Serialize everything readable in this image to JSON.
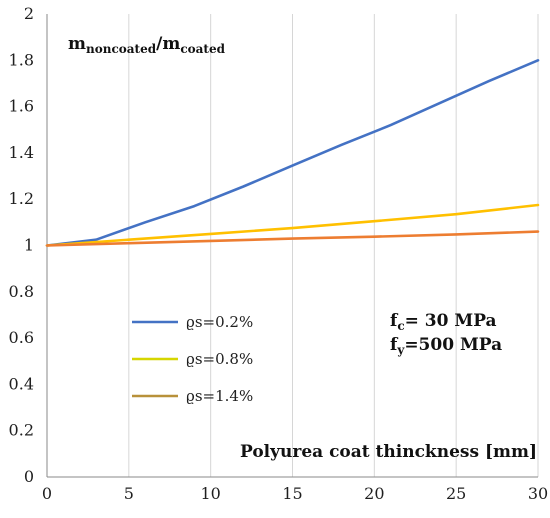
{
  "chart_data": {
    "type": "line",
    "ylabel": {
      "main": "m",
      "sub1": "noncoated",
      "slash": "/m",
      "sub2": "coated"
    },
    "xlabel": "Polyurea coat thinckness [mm]",
    "xlim": [
      0,
      30
    ],
    "ylim": [
      0,
      2
    ],
    "x_ticks": [
      "0",
      "5",
      "10",
      "15",
      "20",
      "25",
      "30"
    ],
    "y_ticks": [
      "0",
      "0.2",
      "0.4",
      "0.6",
      "0.8",
      "1",
      "1.2",
      "1.4",
      "1.6",
      "1.8",
      "2"
    ],
    "grid": "vertical",
    "legend_position": "lower-left",
    "series": [
      {
        "name": "ϱs=0.2%",
        "color": "#4472C4",
        "points": [
          [
            0,
            1.0
          ],
          [
            3,
            1.025
          ],
          [
            6,
            1.1
          ],
          [
            9,
            1.17
          ],
          [
            12,
            1.255
          ],
          [
            15,
            1.345
          ],
          [
            18,
            1.435
          ],
          [
            21,
            1.52
          ],
          [
            24,
            1.615
          ],
          [
            27,
            1.71
          ],
          [
            30,
            1.8
          ]
        ]
      },
      {
        "name": "ϱs=0.8%",
        "color": "#FFC000",
        "points": [
          [
            0,
            1.0
          ],
          [
            5,
            1.025
          ],
          [
            10,
            1.05
          ],
          [
            15,
            1.075
          ],
          [
            20,
            1.105
          ],
          [
            25,
            1.135
          ],
          [
            30,
            1.175
          ]
        ]
      },
      {
        "name": "ϱs=1.4%",
        "color": "#ED7D31",
        "points": [
          [
            0,
            1.0
          ],
          [
            5,
            1.01
          ],
          [
            10,
            1.02
          ],
          [
            15,
            1.03
          ],
          [
            20,
            1.038
          ],
          [
            25,
            1.048
          ],
          [
            30,
            1.06
          ]
        ]
      }
    ],
    "legend_line_colors": [
      "#4472C4",
      "#D6D600",
      "#B8913A"
    ],
    "annotation": {
      "line1_main": "f",
      "line1_sub": "c",
      "line1_rest": "= 30 MPa",
      "line2_main": "f",
      "line2_sub": "y",
      "line2_rest": "=500 MPa"
    }
  }
}
